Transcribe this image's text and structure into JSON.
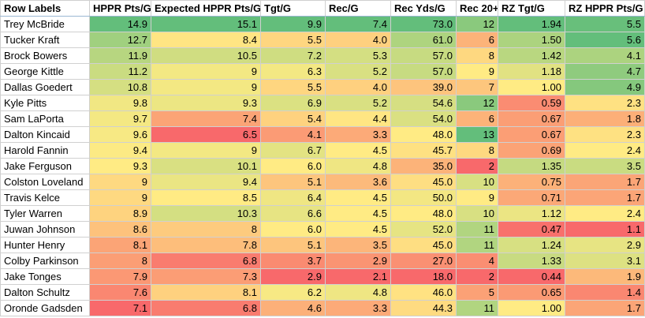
{
  "table": {
    "headers": [
      "Row Labels",
      "HPPR Pts/G",
      "Expected HPPR Pts/G",
      "Tgt/G",
      "Rec/G",
      "Rec Yds/G",
      "Rec 20+",
      "RZ Tgt/G",
      "RZ HPPR Pts/G"
    ],
    "rows": [
      [
        "Trey McBride",
        "14.9",
        "15.1",
        "9.9",
        "7.4",
        "73.0",
        "12",
        "1.94",
        "5.5"
      ],
      [
        "Tucker Kraft",
        "12.7",
        "8.4",
        "5.5",
        "4.0",
        "61.0",
        "6",
        "1.50",
        "5.6"
      ],
      [
        "Brock Bowers",
        "11.9",
        "10.5",
        "7.2",
        "5.3",
        "57.0",
        "8",
        "1.42",
        "4.1"
      ],
      [
        "George Kittle",
        "11.2",
        "9",
        "6.3",
        "5.2",
        "57.0",
        "9",
        "1.18",
        "4.7"
      ],
      [
        "Dallas Goedert",
        "10.8",
        "9",
        "5.5",
        "4.0",
        "39.0",
        "7",
        "1.00",
        "4.9"
      ],
      [
        "Kyle Pitts",
        "9.8",
        "9.3",
        "6.9",
        "5.2",
        "54.6",
        "12",
        "0.59",
        "2.3"
      ],
      [
        "Sam LaPorta",
        "9.7",
        "7.4",
        "5.4",
        "4.4",
        "54.0",
        "6",
        "0.67",
        "1.8"
      ],
      [
        "Dalton Kincaid",
        "9.6",
        "6.5",
        "4.1",
        "3.3",
        "48.0",
        "13",
        "0.67",
        "2.3"
      ],
      [
        "Harold Fannin",
        "9.4",
        "9",
        "6.7",
        "4.5",
        "45.7",
        "8",
        "0.69",
        "2.4"
      ],
      [
        "Jake Ferguson",
        "9.3",
        "10.1",
        "6.0",
        "4.8",
        "35.0",
        "2",
        "1.35",
        "3.5"
      ],
      [
        "Colston Loveland",
        "9",
        "9.4",
        "5.1",
        "3.6",
        "45.0",
        "10",
        "0.75",
        "1.7"
      ],
      [
        "Travis Kelce",
        "9",
        "8.5",
        "6.4",
        "4.5",
        "50.0",
        "9",
        "0.71",
        "1.7"
      ],
      [
        "Tyler Warren",
        "8.9",
        "10.3",
        "6.6",
        "4.5",
        "48.0",
        "10",
        "1.12",
        "2.4"
      ],
      [
        "Juwan Johnson",
        "8.6",
        "8",
        "6.0",
        "4.5",
        "52.0",
        "11",
        "0.47",
        "1.1"
      ],
      [
        "Hunter Henry",
        "8.1",
        "7.8",
        "5.1",
        "3.5",
        "45.0",
        "11",
        "1.24",
        "2.9"
      ],
      [
        "Colby Parkinson",
        "8",
        "6.8",
        "3.7",
        "2.9",
        "27.0",
        "4",
        "1.33",
        "3.1"
      ],
      [
        "Jake Tonges",
        "7.9",
        "7.3",
        "2.9",
        "2.1",
        "18.0",
        "2",
        "0.44",
        "1.9"
      ],
      [
        "Dalton Schultz",
        "7.6",
        "8.1",
        "6.2",
        "4.8",
        "46.0",
        "5",
        "0.65",
        "1.4"
      ],
      [
        "Oronde Gadsden",
        "7.1",
        "6.8",
        "4.6",
        "3.3",
        "44.3",
        "11",
        "1.00",
        "1.7"
      ]
    ]
  },
  "scale_colors": {
    "low": "#f8696b",
    "mid": "#ffeb84",
    "high": "#63be7b"
  }
}
